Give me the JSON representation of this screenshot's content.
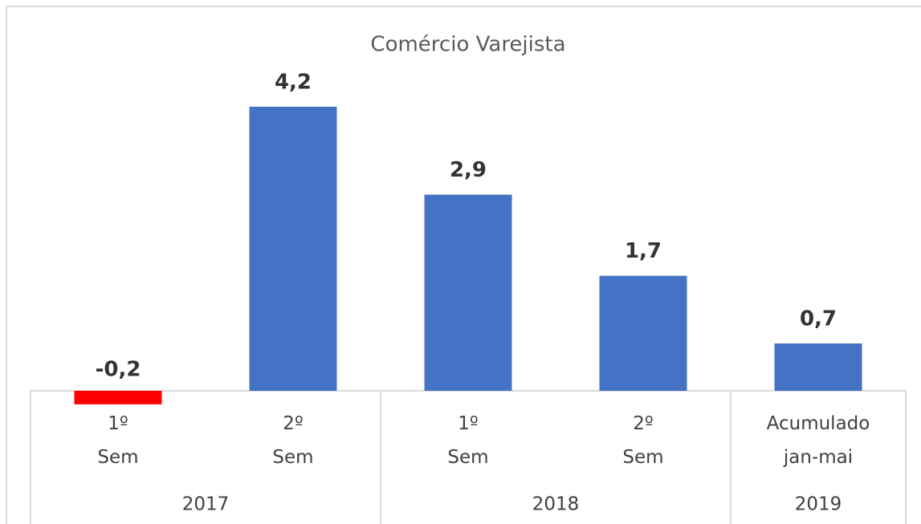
{
  "chart_data": {
    "type": "bar",
    "title": "Comércio Varejista",
    "groups": [
      {
        "label": "2017",
        "categories": [
          "1º Sem",
          "2º Sem"
        ]
      },
      {
        "label": "2018",
        "categories": [
          "1º Sem",
          "2º Sem"
        ]
      },
      {
        "label": "2019",
        "categories": [
          "Acumulado jan-mai"
        ]
      }
    ],
    "values": [
      -0.2,
      4.2,
      2.9,
      1.7,
      0.7
    ],
    "value_labels": [
      "-0,2",
      "4,2",
      "2,9",
      "1,7",
      "0,7"
    ],
    "colors": [
      "#ff0000",
      "#4472c4",
      "#4472c4",
      "#4472c4",
      "#4472c4"
    ]
  }
}
